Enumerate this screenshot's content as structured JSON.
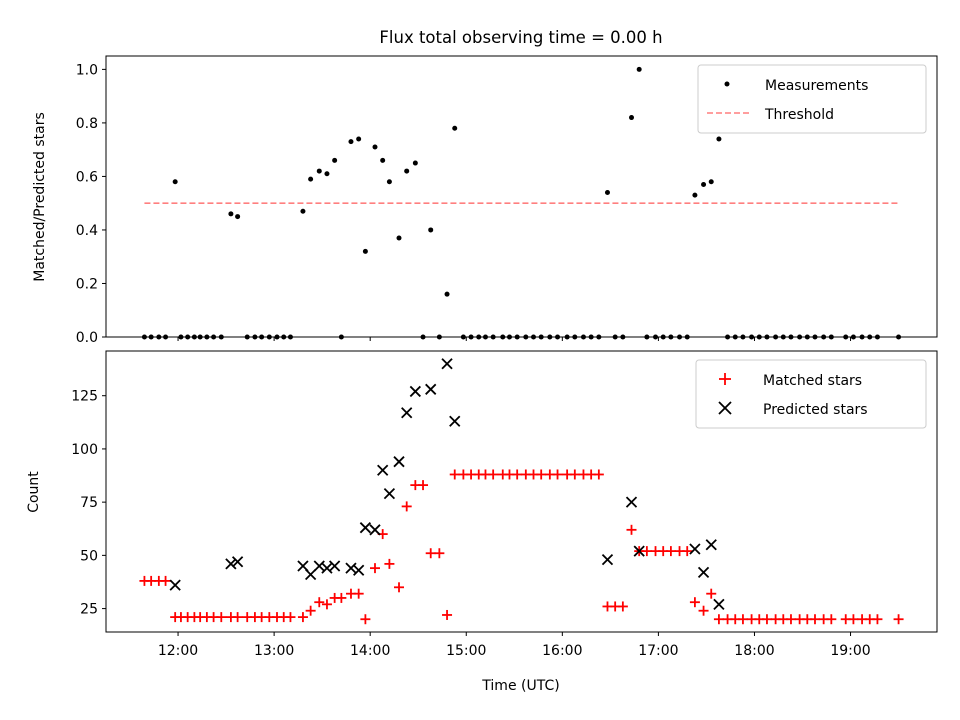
{
  "title": "Flux total observing time = 0.00 h",
  "chart_data": [
    {
      "type": "scatter",
      "xlabel": "",
      "ylabel": "Matched/Predicted stars",
      "xlim": [
        11.25,
        19.9
      ],
      "ylim": [
        0,
        1.05
      ],
      "yticks": [
        0.0,
        0.2,
        0.4,
        0.6,
        0.8,
        1.0
      ],
      "ytick_labels": [
        "0.0",
        "0.2",
        "0.4",
        "0.6",
        "0.8",
        "1.0"
      ],
      "xticks": [
        12,
        13,
        14,
        15,
        16,
        17,
        18,
        19
      ],
      "legend": {
        "position": "top-right",
        "entries": [
          "Measurements",
          "Threshold"
        ]
      },
      "colors": {
        "measurements": "#000000",
        "threshold": "#ff7f7f"
      },
      "threshold": {
        "name": "Threshold",
        "value": 0.5,
        "x_range": [
          11.65,
          19.5
        ]
      },
      "measurements": {
        "name": "Measurements",
        "x": [
          11.65,
          11.72,
          11.8,
          11.87,
          11.97,
          12.03,
          12.1,
          12.17,
          12.23,
          12.3,
          12.37,
          12.45,
          12.55,
          12.62,
          12.72,
          12.8,
          12.87,
          12.95,
          13.03,
          13.1,
          13.17,
          13.3,
          13.38,
          13.47,
          13.55,
          13.63,
          13.7,
          13.8,
          13.88,
          13.95,
          14.05,
          14.13,
          14.2,
          14.3,
          14.38,
          14.47,
          14.55,
          14.63,
          14.72,
          14.8,
          14.88,
          14.97,
          15.05,
          15.13,
          15.2,
          15.28,
          15.38,
          15.45,
          15.53,
          15.62,
          15.7,
          15.78,
          15.87,
          15.95,
          16.05,
          16.13,
          16.22,
          16.3,
          16.38,
          16.47,
          16.55,
          16.63,
          16.72,
          16.8,
          16.88,
          16.97,
          17.05,
          17.13,
          17.22,
          17.3,
          17.38,
          17.47,
          17.55,
          17.63,
          17.72,
          17.8,
          17.88,
          17.97,
          18.05,
          18.13,
          18.22,
          18.3,
          18.38,
          18.47,
          18.55,
          18.63,
          18.72,
          18.8,
          18.95,
          19.03,
          19.12,
          19.2,
          19.28,
          19.5
        ],
        "y": [
          0,
          0,
          0,
          0,
          0.58,
          0,
          0,
          0,
          0,
          0,
          0,
          0,
          0.46,
          0.45,
          0,
          0,
          0,
          0,
          0,
          0,
          0,
          0.47,
          0.59,
          0.62,
          0.61,
          0.66,
          0,
          0.73,
          0.74,
          0.32,
          0.71,
          0.66,
          0.58,
          0.37,
          0.62,
          0.65,
          0,
          0.4,
          0,
          0.16,
          0.78,
          0,
          0,
          0,
          0,
          0,
          0,
          0,
          0,
          0,
          0,
          0,
          0,
          0,
          0,
          0,
          0,
          0,
          0,
          0.54,
          0,
          0,
          0.82,
          1.0,
          0,
          0,
          0,
          0,
          0,
          0,
          0.53,
          0.57,
          0.58,
          0.74,
          0,
          0,
          0,
          0,
          0,
          0,
          0,
          0,
          0,
          0,
          0,
          0,
          0,
          0,
          0,
          0,
          0,
          0,
          0,
          0
        ]
      }
    },
    {
      "type": "scatter",
      "xlabel": "Time (UTC)",
      "ylabel": "Count",
      "xlim": [
        11.25,
        19.9
      ],
      "ylim": [
        14,
        146
      ],
      "yticks": [
        25,
        50,
        75,
        100,
        125
      ],
      "ytick_labels": [
        "25",
        "50",
        "75",
        "100",
        "125"
      ],
      "xticks": [
        12,
        13,
        14,
        15,
        16,
        17,
        18,
        19
      ],
      "xtick_labels": [
        "12:00",
        "13:00",
        "14:00",
        "15:00",
        "16:00",
        "17:00",
        "18:00",
        "19:00"
      ],
      "legend": {
        "position": "top-right",
        "entries": [
          "Matched stars",
          "Predicted stars"
        ]
      },
      "colors": {
        "matched": "#ff0000",
        "predicted": "#000000"
      },
      "series": [
        {
          "name": "Matched stars",
          "x": [
            11.65,
            11.72,
            11.8,
            11.87,
            11.97,
            12.03,
            12.1,
            12.17,
            12.23,
            12.3,
            12.37,
            12.45,
            12.55,
            12.62,
            12.72,
            12.8,
            12.87,
            12.95,
            13.03,
            13.1,
            13.17,
            13.3,
            13.38,
            13.47,
            13.55,
            13.63,
            13.7,
            13.8,
            13.88,
            13.95,
            14.05,
            14.13,
            14.2,
            14.3,
            14.38,
            14.47,
            14.55,
            14.63,
            14.72,
            14.8,
            14.88,
            14.97,
            15.05,
            15.13,
            15.2,
            15.28,
            15.38,
            15.45,
            15.53,
            15.62,
            15.7,
            15.78,
            15.87,
            15.95,
            16.05,
            16.13,
            16.22,
            16.3,
            16.38,
            16.47,
            16.55,
            16.63,
            16.72,
            16.8,
            16.88,
            16.97,
            17.05,
            17.13,
            17.22,
            17.3,
            17.38,
            17.47,
            17.55,
            17.63,
            17.72,
            17.8,
            17.88,
            17.97,
            18.05,
            18.13,
            18.22,
            18.3,
            18.38,
            18.47,
            18.55,
            18.63,
            18.72,
            18.8,
            18.95,
            19.03,
            19.12,
            19.2,
            19.28,
            19.5
          ],
          "y": [
            38,
            38,
            38,
            38,
            21,
            21,
            21,
            21,
            21,
            21,
            21,
            21,
            21,
            21,
            21,
            21,
            21,
            21,
            21,
            21,
            21,
            21,
            24,
            28,
            27,
            30,
            30,
            32,
            32,
            20,
            44,
            60,
            46,
            35,
            73,
            83,
            83,
            51,
            51,
            22,
            88,
            88,
            88,
            88,
            88,
            88,
            88,
            88,
            88,
            88,
            88,
            88,
            88,
            88,
            88,
            88,
            88,
            88,
            88,
            26,
            26,
            26,
            62,
            52,
            52,
            52,
            52,
            52,
            52,
            52,
            28,
            24,
            32,
            20,
            20,
            20,
            20,
            20,
            20,
            20,
            20,
            20,
            20,
            20,
            20,
            20,
            20,
            20,
            20,
            20,
            20,
            20,
            20,
            20
          ]
        },
        {
          "name": "Predicted stars",
          "x": [
            11.97,
            12.55,
            12.62,
            13.3,
            13.38,
            13.47,
            13.55,
            13.63,
            13.8,
            13.88,
            13.95,
            14.05,
            14.13,
            14.2,
            14.3,
            14.38,
            14.47,
            14.63,
            14.8,
            14.88,
            16.47,
            16.72,
            16.8,
            17.38,
            17.47,
            17.55,
            17.63
          ],
          "y": [
            36,
            46,
            47,
            45,
            41,
            45,
            44,
            45,
            44,
            43,
            63,
            62,
            90,
            79,
            94,
            117,
            127,
            128,
            140,
            113,
            48,
            75,
            52,
            53,
            42,
            55,
            27
          ]
        }
      ]
    }
  ]
}
